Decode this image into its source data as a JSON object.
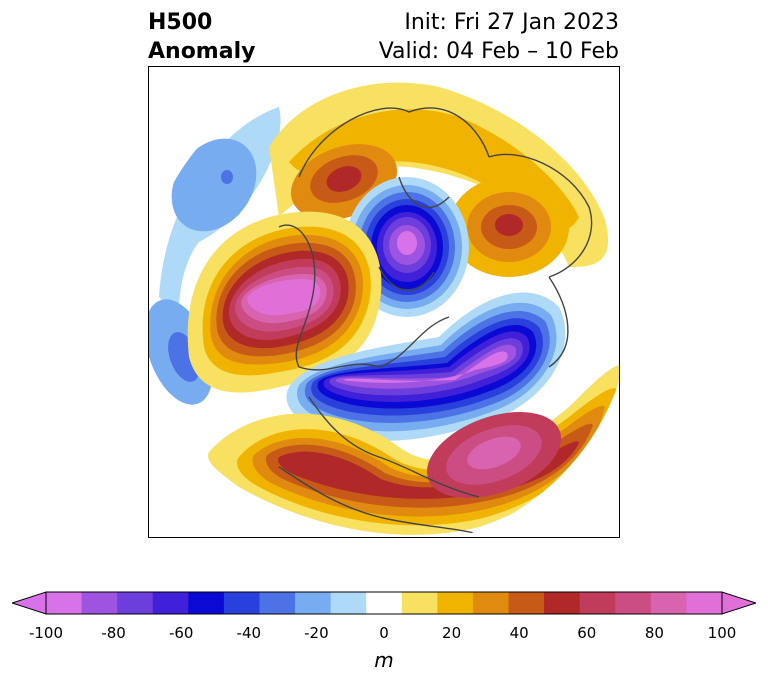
{
  "title": {
    "left_line1": "H500",
    "left_line2": "Anomaly",
    "right_line1": "Init: Fri 27 Jan 2023",
    "right_line2": "Valid: 04 Feb – 10 Feb"
  },
  "colorbar": {
    "label": "m",
    "ticks": [
      "-100",
      "-80",
      "-60",
      "-40",
      "-20",
      "0",
      "20",
      "40",
      "60",
      "80",
      "100"
    ],
    "colors": [
      "#d872e8",
      "#9e54e0",
      "#6c3edc",
      "#4020d8",
      "#0a0ad4",
      "#2a40dc",
      "#4c72e6",
      "#78acf0",
      "#aedaf8",
      "#ffffff",
      "#f8e060",
      "#f0b400",
      "#e08a10",
      "#c85a18",
      "#b02828",
      "#c03c5a",
      "#cc4c84",
      "#d864b0",
      "#e070d8"
    ]
  },
  "map": {
    "projection": "north-polar-stereographic",
    "field": "H500 Anomaly"
  }
}
